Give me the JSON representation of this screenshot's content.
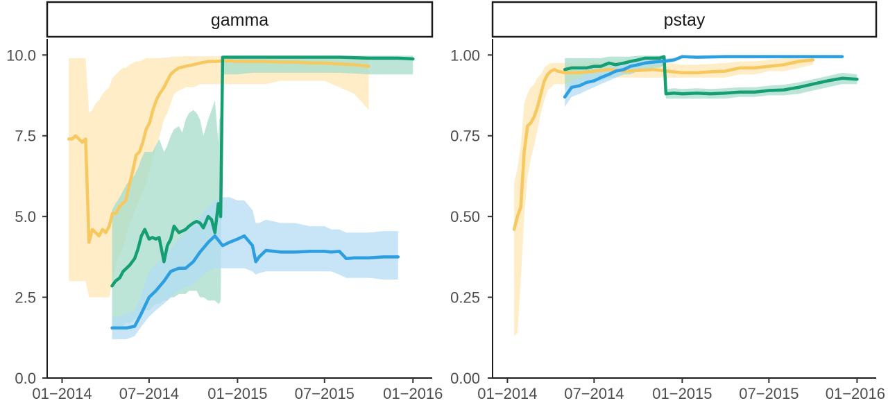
{
  "chart_data": [
    {
      "type": "line",
      "facet_label": "gamma",
      "x_type": "date",
      "ylim": [
        0,
        10.5
      ],
      "xlim": [
        "2013-12-01",
        "2016-02-10"
      ],
      "yticks": [
        0.0,
        2.5,
        5.0,
        7.5,
        10.0
      ],
      "ytick_labels": [
        "0.0",
        "2.5",
        "5.0",
        "7.5",
        "10.0"
      ],
      "xticks": [
        "2014-01-01",
        "2014-07-01",
        "2015-01-01",
        "2015-07-01",
        "2016-01-01"
      ],
      "xtick_labels": [
        "01−2014",
        "07−2014",
        "01−2015",
        "07−2015",
        "01−2016"
      ],
      "grid": false,
      "legend": "none",
      "series": [
        {
          "color": "#F7C860",
          "band_color": "#FDE7B4",
          "x": [
            "2014-01-15",
            "2014-01-22",
            "2014-01-29",
            "2014-02-05",
            "2014-02-12",
            "2014-02-19",
            "2014-02-26",
            "2014-03-05",
            "2014-03-12",
            "2014-03-19",
            "2014-03-26",
            "2014-04-02",
            "2014-04-09",
            "2014-04-16",
            "2014-04-23",
            "2014-04-30",
            "2014-05-07",
            "2014-05-14",
            "2014-05-21",
            "2014-05-28",
            "2014-06-04",
            "2014-06-11",
            "2014-06-18",
            "2014-06-25",
            "2014-07-02",
            "2014-07-09",
            "2014-07-16",
            "2014-07-23",
            "2014-08-01",
            "2014-08-08",
            "2014-08-15",
            "2014-08-22",
            "2014-09-01",
            "2014-09-15",
            "2014-10-01",
            "2014-10-15",
            "2014-11-01",
            "2014-11-15",
            "2014-12-01",
            "2014-12-15",
            "2015-01-01",
            "2015-02-01",
            "2015-03-01",
            "2015-04-01",
            "2015-05-01",
            "2015-06-01",
            "2015-07-01",
            "2015-08-01",
            "2015-09-01",
            "2015-10-01"
          ],
          "y": [
            7.4,
            7.4,
            7.5,
            7.4,
            7.3,
            7.4,
            4.2,
            4.6,
            4.5,
            4.4,
            4.6,
            4.5,
            4.7,
            5.1,
            5.1,
            5.3,
            5.4,
            5.5,
            6.0,
            6.4,
            6.9,
            7.0,
            7.3,
            7.7,
            7.9,
            8.3,
            8.6,
            8.8,
            9.0,
            9.2,
            9.4,
            9.5,
            9.6,
            9.65,
            9.7,
            9.75,
            9.8,
            9.8,
            9.82,
            9.82,
            9.8,
            9.8,
            9.8,
            9.78,
            9.78,
            9.75,
            9.75,
            9.72,
            9.7,
            9.65
          ],
          "lower": [
            3.0,
            3.0,
            3.0,
            3.0,
            3.0,
            3.0,
            2.5,
            2.5,
            2.5,
            2.5,
            2.5,
            2.5,
            2.5,
            3.0,
            3.5,
            3.8,
            4.0,
            4.3,
            4.8,
            5.0,
            5.3,
            5.5,
            5.8,
            6.0,
            6.4,
            6.8,
            7.2,
            7.5,
            8.0,
            8.2,
            8.5,
            8.8,
            8.9,
            9.0,
            9.0,
            9.1,
            9.1,
            9.1,
            9.1,
            9.1,
            9.1,
            9.1,
            9.1,
            9.2,
            9.2,
            9.2,
            9.2,
            9.0,
            8.8,
            8.3
          ],
          "upper": [
            9.9,
            9.9,
            9.9,
            9.9,
            9.9,
            9.9,
            8.2,
            8.3,
            8.5,
            8.6,
            8.8,
            8.9,
            9.0,
            9.3,
            9.4,
            9.5,
            9.6,
            9.6,
            9.7,
            9.75,
            9.8,
            9.8,
            9.85,
            9.9,
            9.9,
            9.9,
            9.9,
            9.9,
            9.92,
            9.92,
            9.94,
            9.95,
            9.95,
            9.96,
            9.96,
            9.96,
            9.96,
            9.96,
            9.96,
            9.96,
            9.96,
            9.96,
            9.96,
            9.95,
            9.95,
            9.95,
            9.95,
            9.95,
            9.95,
            9.95
          ]
        },
        {
          "color": "#159E73",
          "band_color": "#A6DCCB",
          "x": [
            "2014-04-15",
            "2014-04-22",
            "2014-05-01",
            "2014-05-08",
            "2014-05-15",
            "2014-05-22",
            "2014-06-01",
            "2014-06-08",
            "2014-06-15",
            "2014-06-22",
            "2014-07-01",
            "2014-07-08",
            "2014-07-15",
            "2014-07-22",
            "2014-08-01",
            "2014-08-08",
            "2014-08-15",
            "2014-08-22",
            "2014-09-01",
            "2014-09-08",
            "2014-09-15",
            "2014-09-22",
            "2014-10-01",
            "2014-10-08",
            "2014-10-15",
            "2014-10-22",
            "2014-11-01",
            "2014-11-08",
            "2014-11-15",
            "2014-11-22",
            "2014-11-24",
            "2014-11-27",
            "2014-12-01",
            "2015-01-01",
            "2015-02-01",
            "2015-04-01",
            "2015-06-01",
            "2015-08-01",
            "2015-10-01",
            "2015-12-01",
            "2016-01-01"
          ],
          "y": [
            2.85,
            3.0,
            3.1,
            3.3,
            3.4,
            3.5,
            3.7,
            4.0,
            4.4,
            4.6,
            4.3,
            4.35,
            4.3,
            4.35,
            3.6,
            4.1,
            4.3,
            4.7,
            4.5,
            4.55,
            4.6,
            4.7,
            4.8,
            4.85,
            4.8,
            4.65,
            5.0,
            4.9,
            4.5,
            5.4,
            5.3,
            5.0,
            9.93,
            9.93,
            9.93,
            9.93,
            9.93,
            9.93,
            9.9,
            9.9,
            9.88
          ],
          "lower": [
            1.6,
            1.6,
            1.6,
            1.6,
            1.7,
            1.7,
            1.8,
            1.9,
            2.0,
            2.1,
            2.1,
            2.2,
            2.3,
            2.3,
            2.4,
            2.4,
            2.5,
            2.5,
            2.6,
            2.6,
            2.6,
            2.7,
            2.7,
            2.7,
            2.5,
            2.5,
            2.4,
            2.4,
            2.4,
            2.3,
            2.3,
            2.4,
            9.4,
            9.4,
            9.45,
            9.45,
            9.45,
            9.45,
            9.4,
            9.4,
            9.4
          ],
          "upper": [
            5.2,
            5.4,
            5.6,
            5.8,
            6.0,
            6.1,
            6.3,
            6.5,
            6.8,
            7.0,
            7.0,
            7.0,
            7.2,
            7.4,
            7.0,
            7.2,
            7.5,
            7.7,
            7.8,
            7.6,
            8.0,
            8.2,
            8.3,
            8.2,
            8.0,
            7.5,
            8.0,
            8.3,
            8.6,
            7.3,
            8.0,
            8.1,
            9.98,
            9.98,
            9.98,
            9.98,
            9.98,
            9.98,
            9.98,
            9.98,
            9.98
          ]
        },
        {
          "color": "#2D9EE0",
          "band_color": "#B4DCF4",
          "x": [
            "2014-04-15",
            "2014-05-01",
            "2014-05-15",
            "2014-06-01",
            "2014-06-15",
            "2014-07-01",
            "2014-07-15",
            "2014-08-01",
            "2014-08-15",
            "2014-09-01",
            "2014-09-15",
            "2014-10-01",
            "2014-10-15",
            "2014-11-01",
            "2014-11-15",
            "2014-12-01",
            "2014-12-15",
            "2015-01-01",
            "2015-01-15",
            "2015-02-01",
            "2015-02-08",
            "2015-02-15",
            "2015-03-01",
            "2015-04-01",
            "2015-05-01",
            "2015-06-01",
            "2015-07-01",
            "2015-07-15",
            "2015-08-01",
            "2015-08-15",
            "2015-09-01",
            "2015-10-01",
            "2015-11-01",
            "2015-12-01"
          ],
          "y": [
            1.55,
            1.55,
            1.55,
            1.6,
            2.0,
            2.5,
            2.7,
            3.0,
            3.3,
            3.4,
            3.4,
            3.6,
            3.9,
            4.2,
            4.4,
            4.1,
            4.2,
            4.3,
            4.4,
            4.1,
            3.6,
            3.75,
            3.95,
            3.9,
            3.9,
            3.92,
            3.92,
            3.9,
            3.92,
            3.7,
            3.72,
            3.72,
            3.75,
            3.75
          ],
          "lower": [
            1.2,
            1.2,
            1.2,
            1.3,
            1.6,
            1.9,
            2.1,
            2.3,
            2.5,
            2.7,
            2.8,
            2.9,
            3.1,
            3.3,
            3.4,
            3.4,
            3.4,
            3.4,
            3.4,
            3.3,
            3.2,
            3.25,
            3.3,
            3.3,
            3.3,
            3.3,
            3.3,
            3.3,
            3.2,
            3.1,
            3.1,
            3.1,
            3.05,
            3.05
          ],
          "upper": [
            1.9,
            1.9,
            2.0,
            2.1,
            2.6,
            3.3,
            3.5,
            3.8,
            4.0,
            4.3,
            4.5,
            4.7,
            5.0,
            5.3,
            5.5,
            5.6,
            5.6,
            5.5,
            5.5,
            5.2,
            4.8,
            4.8,
            4.9,
            4.8,
            4.8,
            4.7,
            4.7,
            4.6,
            4.6,
            4.5,
            4.5,
            4.5,
            4.55,
            4.55
          ]
        }
      ]
    },
    {
      "type": "line",
      "facet_label": "pstay",
      "x_type": "date",
      "ylim": [
        0,
        1.05
      ],
      "xlim": [
        "2013-12-01",
        "2016-02-10"
      ],
      "yticks": [
        0.0,
        0.25,
        0.5,
        0.75,
        1.0
      ],
      "ytick_labels": [
        "0.00",
        "0.25",
        "0.50",
        "0.75",
        "1.00"
      ],
      "xticks": [
        "2014-01-01",
        "2014-07-01",
        "2015-01-01",
        "2015-07-01",
        "2016-01-01"
      ],
      "xtick_labels": [
        "01−2014",
        "07−2014",
        "01−2015",
        "07−2015",
        "01−2016"
      ],
      "grid": false,
      "legend": "none",
      "series": [
        {
          "color": "#F7C860",
          "band_color": "#FDE7B4",
          "x": [
            "2014-01-15",
            "2014-01-22",
            "2014-01-29",
            "2014-02-05",
            "2014-02-12",
            "2014-02-19",
            "2014-02-26",
            "2014-03-05",
            "2014-03-12",
            "2014-03-19",
            "2014-03-26",
            "2014-04-02",
            "2014-04-09",
            "2014-04-16",
            "2014-05-01",
            "2014-06-01",
            "2014-07-01",
            "2014-08-01",
            "2014-09-01",
            "2014-10-01",
            "2014-11-01",
            "2014-12-01",
            "2015-01-01",
            "2015-02-01",
            "2015-03-01",
            "2015-04-01",
            "2015-05-01",
            "2015-06-01",
            "2015-07-01",
            "2015-08-01",
            "2015-09-01",
            "2015-10-01"
          ],
          "y": [
            0.46,
            0.5,
            0.53,
            0.7,
            0.78,
            0.79,
            0.81,
            0.84,
            0.88,
            0.92,
            0.94,
            0.95,
            0.955,
            0.95,
            0.945,
            0.945,
            0.95,
            0.955,
            0.95,
            0.952,
            0.955,
            0.95,
            0.945,
            0.945,
            0.948,
            0.95,
            0.96,
            0.96,
            0.965,
            0.97,
            0.98,
            0.985
          ],
          "lower": [
            0.13,
            0.14,
            0.3,
            0.5,
            0.62,
            0.68,
            0.72,
            0.77,
            0.82,
            0.86,
            0.89,
            0.9,
            0.91,
            0.91,
            0.91,
            0.92,
            0.92,
            0.93,
            0.93,
            0.93,
            0.93,
            0.93,
            0.93,
            0.93,
            0.93,
            0.93,
            0.94,
            0.94,
            0.95,
            0.95,
            0.96,
            0.97
          ],
          "upper": [
            0.6,
            0.65,
            0.72,
            0.85,
            0.88,
            0.9,
            0.91,
            0.93,
            0.94,
            0.96,
            0.97,
            0.975,
            0.975,
            0.975,
            0.975,
            0.975,
            0.98,
            0.98,
            0.98,
            0.98,
            0.98,
            0.975,
            0.97,
            0.97,
            0.972,
            0.975,
            0.98,
            0.98,
            0.985,
            0.99,
            0.99,
            0.995
          ]
        },
        {
          "color": "#159E73",
          "band_color": "#A6DCCB",
          "x": [
            "2014-05-01",
            "2014-05-15",
            "2014-06-01",
            "2014-06-15",
            "2014-07-01",
            "2014-07-15",
            "2014-08-01",
            "2014-08-15",
            "2014-09-01",
            "2014-09-15",
            "2014-10-01",
            "2014-10-15",
            "2014-11-01",
            "2014-11-15",
            "2014-11-24",
            "2014-11-28",
            "2014-12-15",
            "2015-01-01",
            "2015-02-01",
            "2015-03-01",
            "2015-04-01",
            "2015-05-01",
            "2015-06-01",
            "2015-07-01",
            "2015-08-01",
            "2015-09-01",
            "2015-10-01",
            "2015-11-01",
            "2015-12-01",
            "2016-01-01"
          ],
          "y": [
            0.955,
            0.96,
            0.96,
            0.96,
            0.965,
            0.965,
            0.975,
            0.97,
            0.975,
            0.98,
            0.985,
            0.99,
            0.99,
            0.99,
            0.995,
            0.88,
            0.882,
            0.88,
            0.882,
            0.88,
            0.882,
            0.885,
            0.885,
            0.89,
            0.892,
            0.9,
            0.91,
            0.92,
            0.928,
            0.925
          ],
          "lower": [
            0.9,
            0.9,
            0.91,
            0.91,
            0.92,
            0.92,
            0.93,
            0.93,
            0.94,
            0.94,
            0.95,
            0.95,
            0.96,
            0.96,
            0.97,
            0.865,
            0.865,
            0.865,
            0.865,
            0.865,
            0.865,
            0.87,
            0.87,
            0.875,
            0.875,
            0.88,
            0.89,
            0.9,
            0.91,
            0.91
          ],
          "upper": [
            0.99,
            0.99,
            0.99,
            0.99,
            0.99,
            0.99,
            0.995,
            0.995,
            0.995,
            0.995,
            0.998,
            0.998,
            0.998,
            0.998,
            0.999,
            0.895,
            0.897,
            0.895,
            0.897,
            0.895,
            0.897,
            0.9,
            0.9,
            0.905,
            0.908,
            0.915,
            0.925,
            0.935,
            0.945,
            0.94
          ]
        },
        {
          "color": "#2D9EE0",
          "band_color": "#B4DCF4",
          "x": [
            "2014-05-01",
            "2014-05-15",
            "2014-06-01",
            "2014-06-15",
            "2014-07-01",
            "2014-07-15",
            "2014-08-01",
            "2014-08-15",
            "2014-09-01",
            "2014-09-15",
            "2014-10-01",
            "2014-10-15",
            "2014-11-01",
            "2014-11-15",
            "2014-12-01",
            "2014-12-15",
            "2015-01-01",
            "2015-02-01",
            "2015-04-01",
            "2015-06-01",
            "2015-08-01",
            "2015-10-01",
            "2015-12-01"
          ],
          "y": [
            0.87,
            0.9,
            0.905,
            0.915,
            0.92,
            0.93,
            0.94,
            0.95,
            0.955,
            0.965,
            0.97,
            0.975,
            0.978,
            0.98,
            0.982,
            0.985,
            0.995,
            0.993,
            0.995,
            0.995,
            0.995,
            0.995,
            0.995
          ],
          "lower": [
            0.84,
            0.87,
            0.88,
            0.89,
            0.9,
            0.91,
            0.92,
            0.93,
            0.94,
            0.95,
            0.96,
            0.965,
            0.97,
            0.972,
            0.975,
            0.978,
            0.99,
            0.988,
            0.99,
            0.99,
            0.99,
            0.99,
            0.99
          ],
          "upper": [
            0.9,
            0.92,
            0.93,
            0.94,
            0.94,
            0.95,
            0.96,
            0.965,
            0.97,
            0.975,
            0.98,
            0.983,
            0.985,
            0.988,
            0.99,
            0.99,
            0.998,
            0.997,
            0.998,
            0.998,
            0.998,
            0.998,
            0.998
          ]
        }
      ]
    }
  ]
}
